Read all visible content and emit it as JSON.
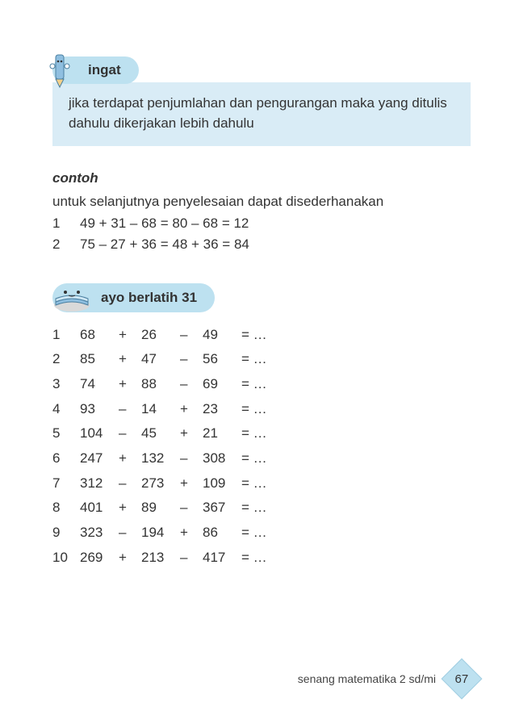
{
  "ingat": {
    "title": "ingat",
    "body": "jika terdapat penjumlahan dan pengurangan maka yang ditulis dahulu dikerjakan lebih dahulu",
    "colors": {
      "pill_bg": "#bde1f0",
      "body_bg": "#d9ecf6"
    }
  },
  "contoh": {
    "title": "contoh",
    "intro": "untuk selanjutnya penyelesaian dapat disederhanakan",
    "rows": [
      {
        "n": "1",
        "expr": "49 + 31 – 68 = 80 – 68 = 12"
      },
      {
        "n": "2",
        "expr": "75 – 27 + 36 = 48 + 36 = 84"
      }
    ]
  },
  "latih": {
    "title": "ayo berlatih 31",
    "colors": {
      "pill_bg": "#bde1f0"
    },
    "problems": [
      {
        "n": "1",
        "a": "68",
        "op1": "+",
        "b": "26",
        "op2": "–",
        "c": "49",
        "eq": "= …"
      },
      {
        "n": "2",
        "a": "85",
        "op1": "+",
        "b": "47",
        "op2": "–",
        "c": "56",
        "eq": "= …"
      },
      {
        "n": "3",
        "a": "74",
        "op1": "+",
        "b": "88",
        "op2": "–",
        "c": "69",
        "eq": "= …"
      },
      {
        "n": "4",
        "a": "93",
        "op1": "–",
        "b": "14",
        "op2": "+",
        "c": "23",
        "eq": "= …"
      },
      {
        "n": "5",
        "a": "104",
        "op1": "–",
        "b": "45",
        "op2": "+",
        "c": "21",
        "eq": "= …"
      },
      {
        "n": "6",
        "a": "247",
        "op1": "+",
        "b": "132",
        "op2": "–",
        "c": "308",
        "eq": "= …"
      },
      {
        "n": "7",
        "a": "312",
        "op1": "–",
        "b": "273",
        "op2": "+",
        "c": "109",
        "eq": "= …"
      },
      {
        "n": "8",
        "a": "401",
        "op1": "+",
        "b": "89",
        "op2": "–",
        "c": "367",
        "eq": "= …"
      },
      {
        "n": "9",
        "a": "323",
        "op1": "–",
        "b": "194",
        "op2": "+",
        "c": "86",
        "eq": "= …"
      },
      {
        "n": "10",
        "a": "269",
        "op1": "+",
        "b": "213",
        "op2": "–",
        "c": "417",
        "eq": "= …"
      }
    ]
  },
  "footer": {
    "text": "senang matematika 2 sd/mi",
    "page": "67",
    "badge_bg": "#bde1f0"
  }
}
